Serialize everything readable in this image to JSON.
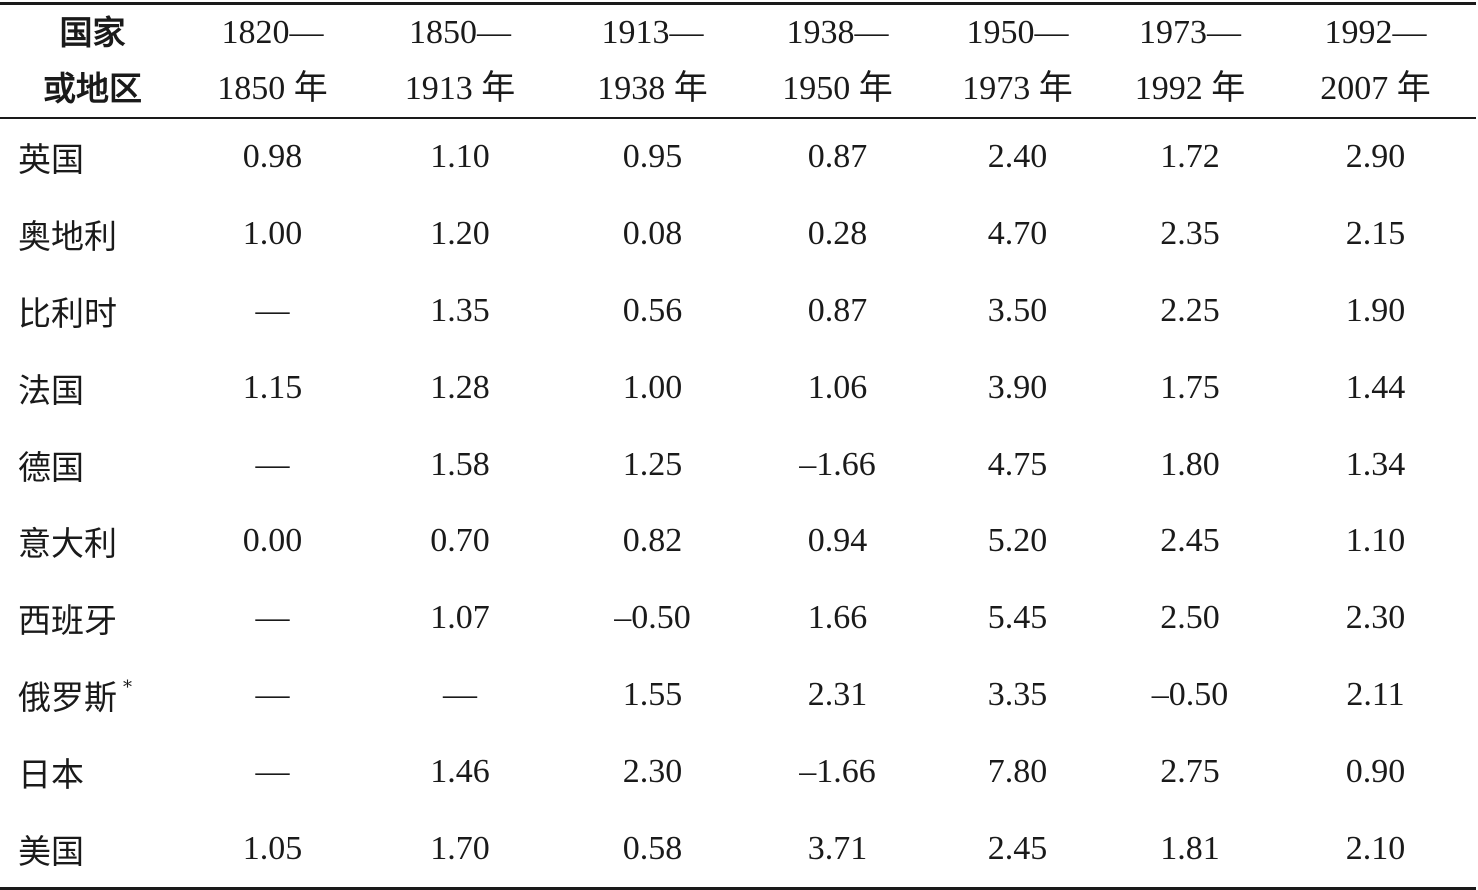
{
  "table": {
    "headers": [
      {
        "line1": "国家",
        "line2": "或地区"
      },
      {
        "line1": "1820—",
        "line2": "1850 年"
      },
      {
        "line1": "1850—",
        "line2": "1913 年"
      },
      {
        "line1": "1913—",
        "line2": "1938 年"
      },
      {
        "line1": "1938—",
        "line2": "1950 年"
      },
      {
        "line1": "1950—",
        "line2": "1973 年"
      },
      {
        "line1": "1973—",
        "line2": "1992 年"
      },
      {
        "line1": "1992—",
        "line2": "2007 年"
      }
    ],
    "rows": [
      {
        "country": "英国",
        "note": "",
        "values": [
          "0.98",
          "1.10",
          "0.95",
          "0.87",
          "2.40",
          "1.72",
          "2.90"
        ]
      },
      {
        "country": "奥地利",
        "note": "",
        "values": [
          "1.00",
          "1.20",
          "0.08",
          "0.28",
          "4.70",
          "2.35",
          "2.15"
        ]
      },
      {
        "country": "比利时",
        "note": "",
        "values": [
          "—",
          "1.35",
          "0.56",
          "0.87",
          "3.50",
          "2.25",
          "1.90"
        ]
      },
      {
        "country": "法国",
        "note": "",
        "values": [
          "1.15",
          "1.28",
          "1.00",
          "1.06",
          "3.90",
          "1.75",
          "1.44"
        ]
      },
      {
        "country": "德国",
        "note": "",
        "values": [
          "—",
          "1.58",
          "1.25",
          "–1.66",
          "4.75",
          "1.80",
          "1.34"
        ]
      },
      {
        "country": "意大利",
        "note": "",
        "values": [
          "0.00",
          "0.70",
          "0.82",
          "0.94",
          "5.20",
          "2.45",
          "1.10"
        ]
      },
      {
        "country": "西班牙",
        "note": "",
        "values": [
          "—",
          "1.07",
          "–0.50",
          "1.66",
          "5.45",
          "2.50",
          "2.30"
        ]
      },
      {
        "country": "俄罗斯",
        "note": "*",
        "values": [
          "—",
          "—",
          "1.55",
          "2.31",
          "3.35",
          "–0.50",
          "2.11"
        ]
      },
      {
        "country": "日本",
        "note": "",
        "values": [
          "—",
          "1.46",
          "2.30",
          "–1.66",
          "7.80",
          "2.75",
          "0.90"
        ]
      },
      {
        "country": "美国",
        "note": "",
        "values": [
          "1.05",
          "1.70",
          "0.58",
          "3.71",
          "2.45",
          "1.81",
          "2.10"
        ]
      }
    ]
  }
}
